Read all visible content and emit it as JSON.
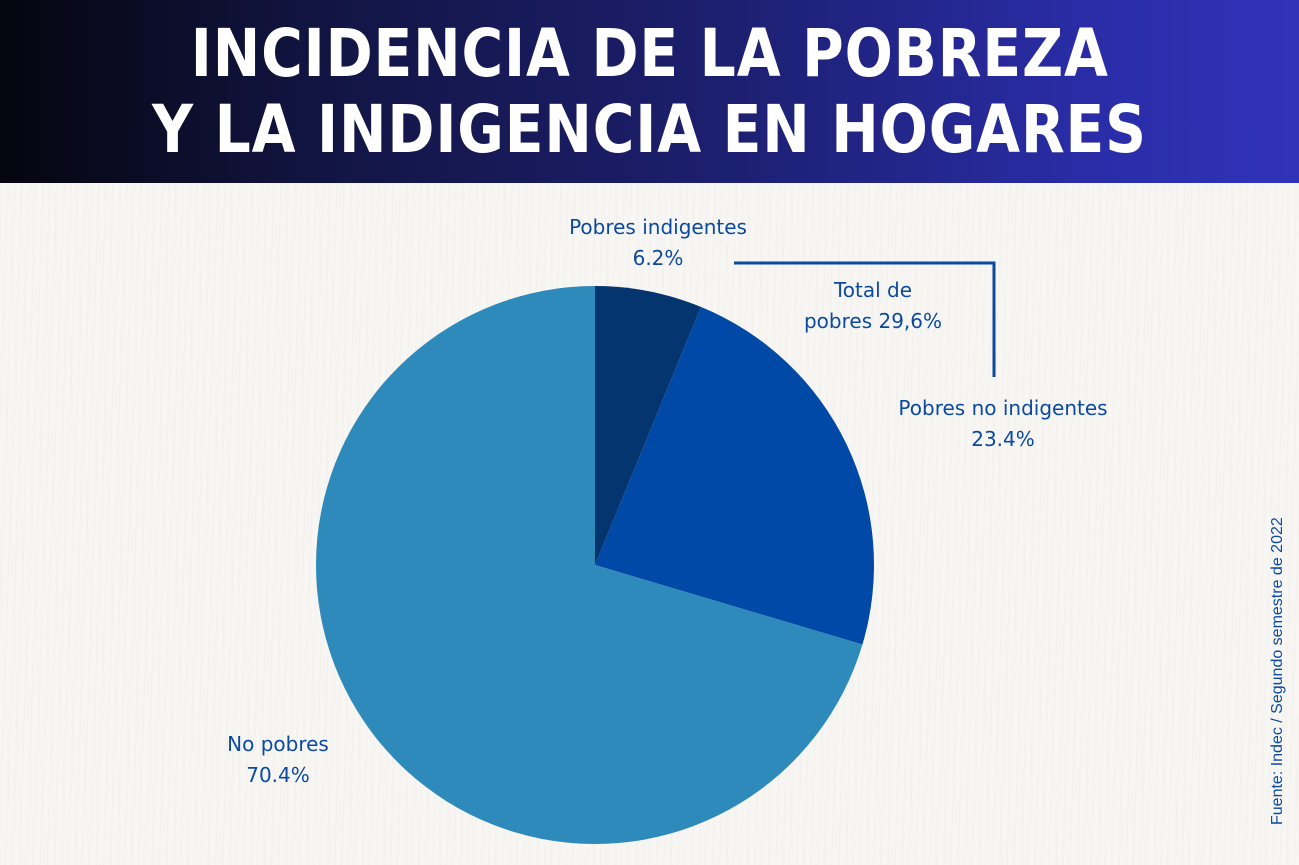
{
  "header": {
    "title_line1": "INCIDENCIA DE LA POBREZA",
    "title_line2": "Y LA INDIGENCIA EN HOGARES"
  },
  "labels": {
    "pobres_indigentes": {
      "name": "Pobres indigentes",
      "value": "6.2%"
    },
    "pobres_no_indigentes": {
      "name": "Pobres no indigentes",
      "value": "23.4%"
    },
    "no_pobres": {
      "name": "No pobres",
      "value": "70.4%"
    },
    "total_pobres": {
      "line1": "Total de",
      "line2": "pobres 29,6%"
    }
  },
  "source": "Fuente: Indec / Segundo semestre de 2022",
  "colors": {
    "pobres_indigentes": "#04356f",
    "pobres_no_indigentes": "#0049a6",
    "no_pobres": "#2e8aba",
    "label_text": "#0b4aa0",
    "header_gradient_start": "#05050f",
    "header_gradient_end": "#3033b8"
  },
  "chart_data": {
    "type": "pie",
    "title": "INCIDENCIA DE LA POBREZA Y LA INDIGENCIA EN HOGARES",
    "categories": [
      "Pobres indigentes",
      "Pobres no indigentes",
      "No pobres"
    ],
    "values": [
      6.2,
      23.4,
      70.4
    ],
    "colors": [
      "#04356f",
      "#0049a6",
      "#2e8aba"
    ],
    "annotations": [
      {
        "text": "Total de pobres 29,6%",
        "spans": [
          "Pobres indigentes",
          "Pobres no indigentes"
        ]
      }
    ],
    "start_angle": "12 o'clock, clockwise",
    "source": "Fuente: Indec / Segundo semestre de 2022",
    "legend": "none (direct labels)"
  }
}
